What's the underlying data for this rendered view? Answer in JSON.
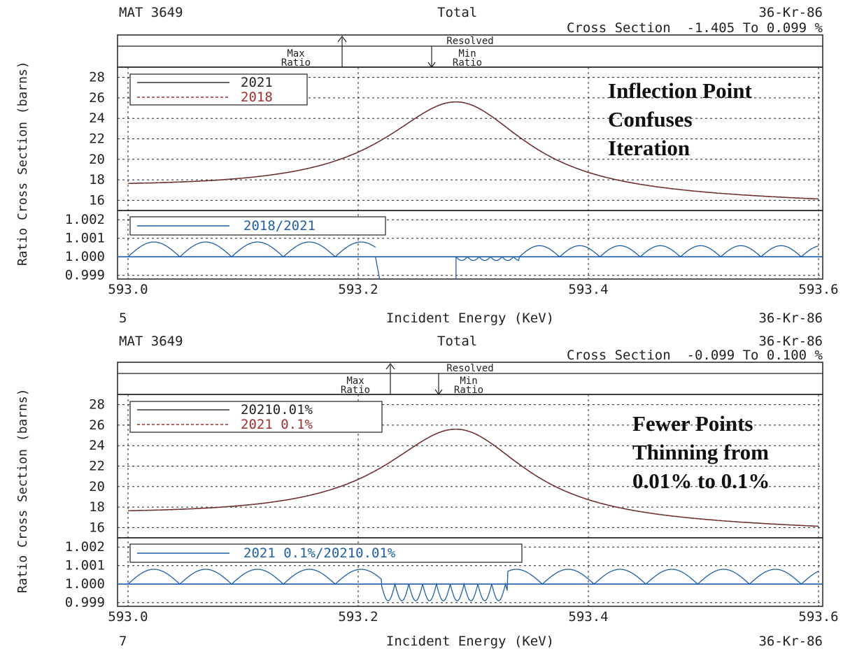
{
  "panels": [
    {
      "mat": "MAT 3649",
      "title1": "Total",
      "title2": "Cross Section  -1.405 To 0.099 %",
      "nuclide": "36-Kr-86",
      "region_label": "Resolved",
      "max_label": [
        "Max",
        "Ratio"
      ],
      "min_label": [
        "Min",
        "Ratio"
      ],
      "plot_number": "5",
      "xlabel": "Incident Energy (KeV)",
      "ylabel": "Ratio Cross Section (barns)",
      "note": [
        "Inflection Point",
        "Confuses",
        "Iteration"
      ],
      "ratio_legend": "2018/2021"
    },
    {
      "mat": "MAT 3649",
      "title1": "Total",
      "title2": "Cross Section  -0.099 To 0.100 %",
      "nuclide": "36-Kr-86",
      "region_label": "Resolved",
      "max_label": [
        "Max",
        "Ratio"
      ],
      "min_label": [
        "Min",
        "Ratio"
      ],
      "plot_number": "7",
      "xlabel": "Incident Energy (KeV)",
      "ylabel": "Ratio Cross Section (barns)",
      "note": [
        "Fewer Points",
        "Thinning from",
        "0.01% to 0.1%"
      ],
      "ratio_legend": "2021 0.1%/20210.01%"
    }
  ],
  "chart_data": [
    {
      "type": "line",
      "title": "Total Cross Section -1.405 To 0.099 %",
      "xlabel": "Incident Energy (KeV)",
      "ylabel": "Cross Section (barns)",
      "xlim": [
        593.0,
        593.6
      ],
      "ylim": [
        15,
        29
      ],
      "x_ticks": [
        "593.0",
        "593.2",
        "593.4",
        "593.6"
      ],
      "y_ticks": [
        "16",
        "18",
        "20",
        "22",
        "24",
        "26",
        "28"
      ],
      "grid": true,
      "legend_position": "top-left",
      "resonance": {
        "peak_energy": 593.29,
        "peak_value": 25.2
      },
      "series": [
        {
          "name": "2021",
          "color": "#333333",
          "style": "solid",
          "x": [
            593.0,
            593.05,
            593.1,
            593.15,
            593.2,
            593.25,
            593.29,
            593.33,
            593.4,
            593.45,
            593.5,
            593.55,
            593.6
          ],
          "y": [
            17.6,
            17.9,
            18.4,
            19.2,
            20.8,
            23.6,
            25.2,
            23.8,
            19.8,
            18.0,
            16.8,
            16.0,
            15.5
          ]
        },
        {
          "name": "2018",
          "color": "#a03030",
          "style": "dashed",
          "x": [
            593.0,
            593.05,
            593.1,
            593.15,
            593.2,
            593.25,
            593.29,
            593.33,
            593.4,
            593.45,
            593.5,
            593.55,
            593.6
          ],
          "y": [
            17.6,
            17.9,
            18.4,
            19.2,
            20.8,
            23.5,
            25.2,
            23.8,
            19.8,
            18.0,
            16.8,
            16.0,
            15.5
          ]
        }
      ],
      "ratio": {
        "ylabel": "Ratio",
        "ylim": [
          0.9988,
          1.0025
        ],
        "y_ticks": [
          "0.999",
          "1.000",
          "1.001",
          "1.002"
        ],
        "legend_position": "top-left",
        "series": [
          {
            "name": "2018/2021",
            "color": "#1f5fa8",
            "baseline": 1.0,
            "max_amplitude": 0.001
          }
        ],
        "markers": {
          "max_ratio_energy": 593.18,
          "min_ratio_energy": 593.27
        }
      }
    },
    {
      "type": "line",
      "title": "Total Cross Section -0.099 To 0.100 %",
      "xlabel": "Incident Energy (KeV)",
      "ylabel": "Cross Section (barns)",
      "xlim": [
        593.0,
        593.6
      ],
      "ylim": [
        15,
        29
      ],
      "x_ticks": [
        "593.0",
        "593.2",
        "593.4",
        "593.6"
      ],
      "y_ticks": [
        "16",
        "18",
        "20",
        "22",
        "24",
        "26",
        "28"
      ],
      "grid": true,
      "legend_position": "top-left",
      "resonance": {
        "peak_energy": 593.29,
        "peak_value": 25.2
      },
      "series": [
        {
          "name": "20210.01%",
          "color": "#333333",
          "style": "solid",
          "x": [
            593.0,
            593.05,
            593.1,
            593.15,
            593.2,
            593.25,
            593.29,
            593.33,
            593.4,
            593.45,
            593.5,
            593.55,
            593.6
          ],
          "y": [
            17.6,
            17.9,
            18.4,
            19.2,
            20.8,
            23.6,
            25.2,
            23.8,
            19.8,
            18.0,
            16.8,
            16.0,
            15.5
          ]
        },
        {
          "name": "2021 0.1%",
          "color": "#a03030",
          "style": "dashed",
          "x": [
            593.0,
            593.05,
            593.1,
            593.15,
            593.2,
            593.25,
            593.29,
            593.33,
            593.4,
            593.45,
            593.5,
            593.55,
            593.6
          ],
          "y": [
            17.6,
            17.9,
            18.4,
            19.2,
            20.8,
            23.6,
            25.2,
            23.8,
            19.8,
            18.0,
            16.8,
            16.0,
            15.5
          ]
        }
      ],
      "ratio": {
        "ylabel": "Ratio",
        "ylim": [
          0.9988,
          1.0025
        ],
        "y_ticks": [
          "0.999",
          "1.000",
          "1.001",
          "1.002"
        ],
        "legend_position": "top-left",
        "series": [
          {
            "name": "2021 0.1%/20210.01%",
            "color": "#1f5fa8",
            "baseline": 1.0,
            "max_amplitude": 0.001
          }
        ],
        "markers": {
          "max_ratio_energy": 593.23,
          "min_ratio_energy": 593.28
        }
      }
    }
  ]
}
